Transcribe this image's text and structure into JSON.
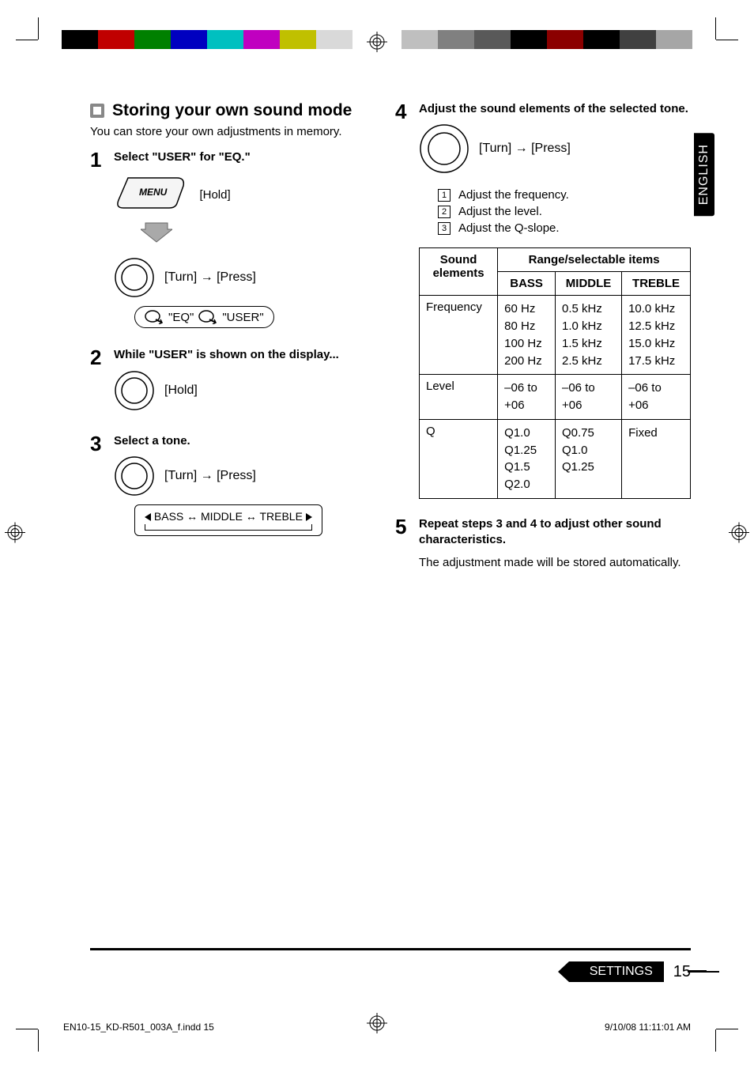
{
  "lang_tab": "ENGLISH",
  "colorbar_left": [
    "#000000",
    "#c00000",
    "#008000",
    "#0000c0",
    "#00c0c0",
    "#c000c0",
    "#c0c000",
    "#d9d9d9"
  ],
  "colorbar_right": [
    "#bfbfbf",
    "#808080",
    "#595959",
    "#000000",
    "#8b0000",
    "#000000",
    "#404040",
    "#a6a6a6"
  ],
  "section_title": "Storing your own sound mode",
  "intro": "You can store your own adjustments in memory.",
  "step1": {
    "num": "1",
    "title_parts": [
      "Select \"",
      "USER",
      "\" for \"",
      "EQ",
      ".\""
    ],
    "hold": "[Hold]",
    "turnpress": "[Turn] → [Press]",
    "eq": "\"EQ\"",
    "user": "\"USER\""
  },
  "step2": {
    "num": "2",
    "title_parts": [
      "While \"",
      "USER",
      "\" is shown on the display..."
    ],
    "hold": "[Hold]"
  },
  "step3": {
    "num": "3",
    "title": "Select a tone.",
    "turnpress": "[Turn] → [Press]",
    "cycle": "BASS ↔ MIDDLE ↔ TREBLE"
  },
  "step4": {
    "num": "4",
    "title": "Adjust the sound elements of the selected tone.",
    "turnpress": "[Turn] → [Press]",
    "enum": [
      {
        "n": "1",
        "t": "Adjust the frequency."
      },
      {
        "n": "2",
        "t": "Adjust the level."
      },
      {
        "n": "3",
        "t": "Adjust the Q-slope."
      }
    ]
  },
  "table": {
    "head_left_top": "Sound",
    "head_left_bottom": "elements",
    "head_right": "Range/selectable items",
    "cols": [
      "BASS",
      "MIDDLE",
      "TREBLE"
    ],
    "rows": [
      {
        "label": "Frequency",
        "bass": [
          "60 Hz",
          "80 Hz",
          "100 Hz",
          "200 Hz"
        ],
        "middle": [
          "0.5 kHz",
          "1.0 kHz",
          "1.5 kHz",
          "2.5 kHz"
        ],
        "treble": [
          "10.0 kHz",
          "12.5 kHz",
          "15.0 kHz",
          "17.5 kHz"
        ]
      },
      {
        "label": "Level",
        "bass": [
          "–06 to",
          "+06"
        ],
        "middle": [
          "–06 to",
          "+06"
        ],
        "treble": [
          "–06 to",
          "+06"
        ]
      },
      {
        "label": "Q",
        "bass": [
          "Q1.0",
          "Q1.25",
          "Q1.5",
          "Q2.0"
        ],
        "middle": [
          "Q0.75",
          "Q1.0",
          "Q1.25"
        ],
        "treble": [
          "Fixed"
        ]
      }
    ]
  },
  "step5": {
    "num": "5",
    "title": "Repeat steps 3 and 4 to adjust other sound characteristics.",
    "text": "The adjustment made will be stored automatically."
  },
  "footer": {
    "label": "SETTINGS",
    "page": "15",
    "file": "EN10-15_KD-R501_003A_f.indd   15",
    "timestamp": "9/10/08   11:11:01 AM"
  }
}
